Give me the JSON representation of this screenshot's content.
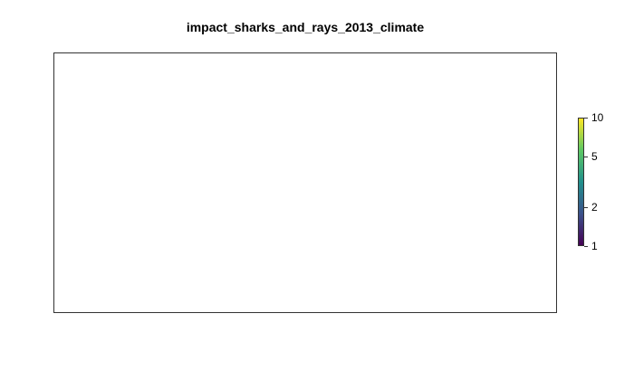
{
  "chart_data": {
    "type": "heatmap",
    "title": "impact_sharks_and_rays_2013_climate",
    "xlabel": "",
    "ylabel": "",
    "values": [],
    "legend": {
      "placement": "right",
      "scale": "log",
      "range": [
        1,
        10
      ],
      "ticks": [
        {
          "value": 10,
          "label": "10"
        },
        {
          "value": 5,
          "label": "5"
        },
        {
          "value": 2,
          "label": "2"
        },
        {
          "value": 1,
          "label": "1"
        }
      ],
      "colors": [
        "#440154",
        "#3b528b",
        "#21908c",
        "#5dc863",
        "#fde725"
      ]
    },
    "grid": false
  }
}
